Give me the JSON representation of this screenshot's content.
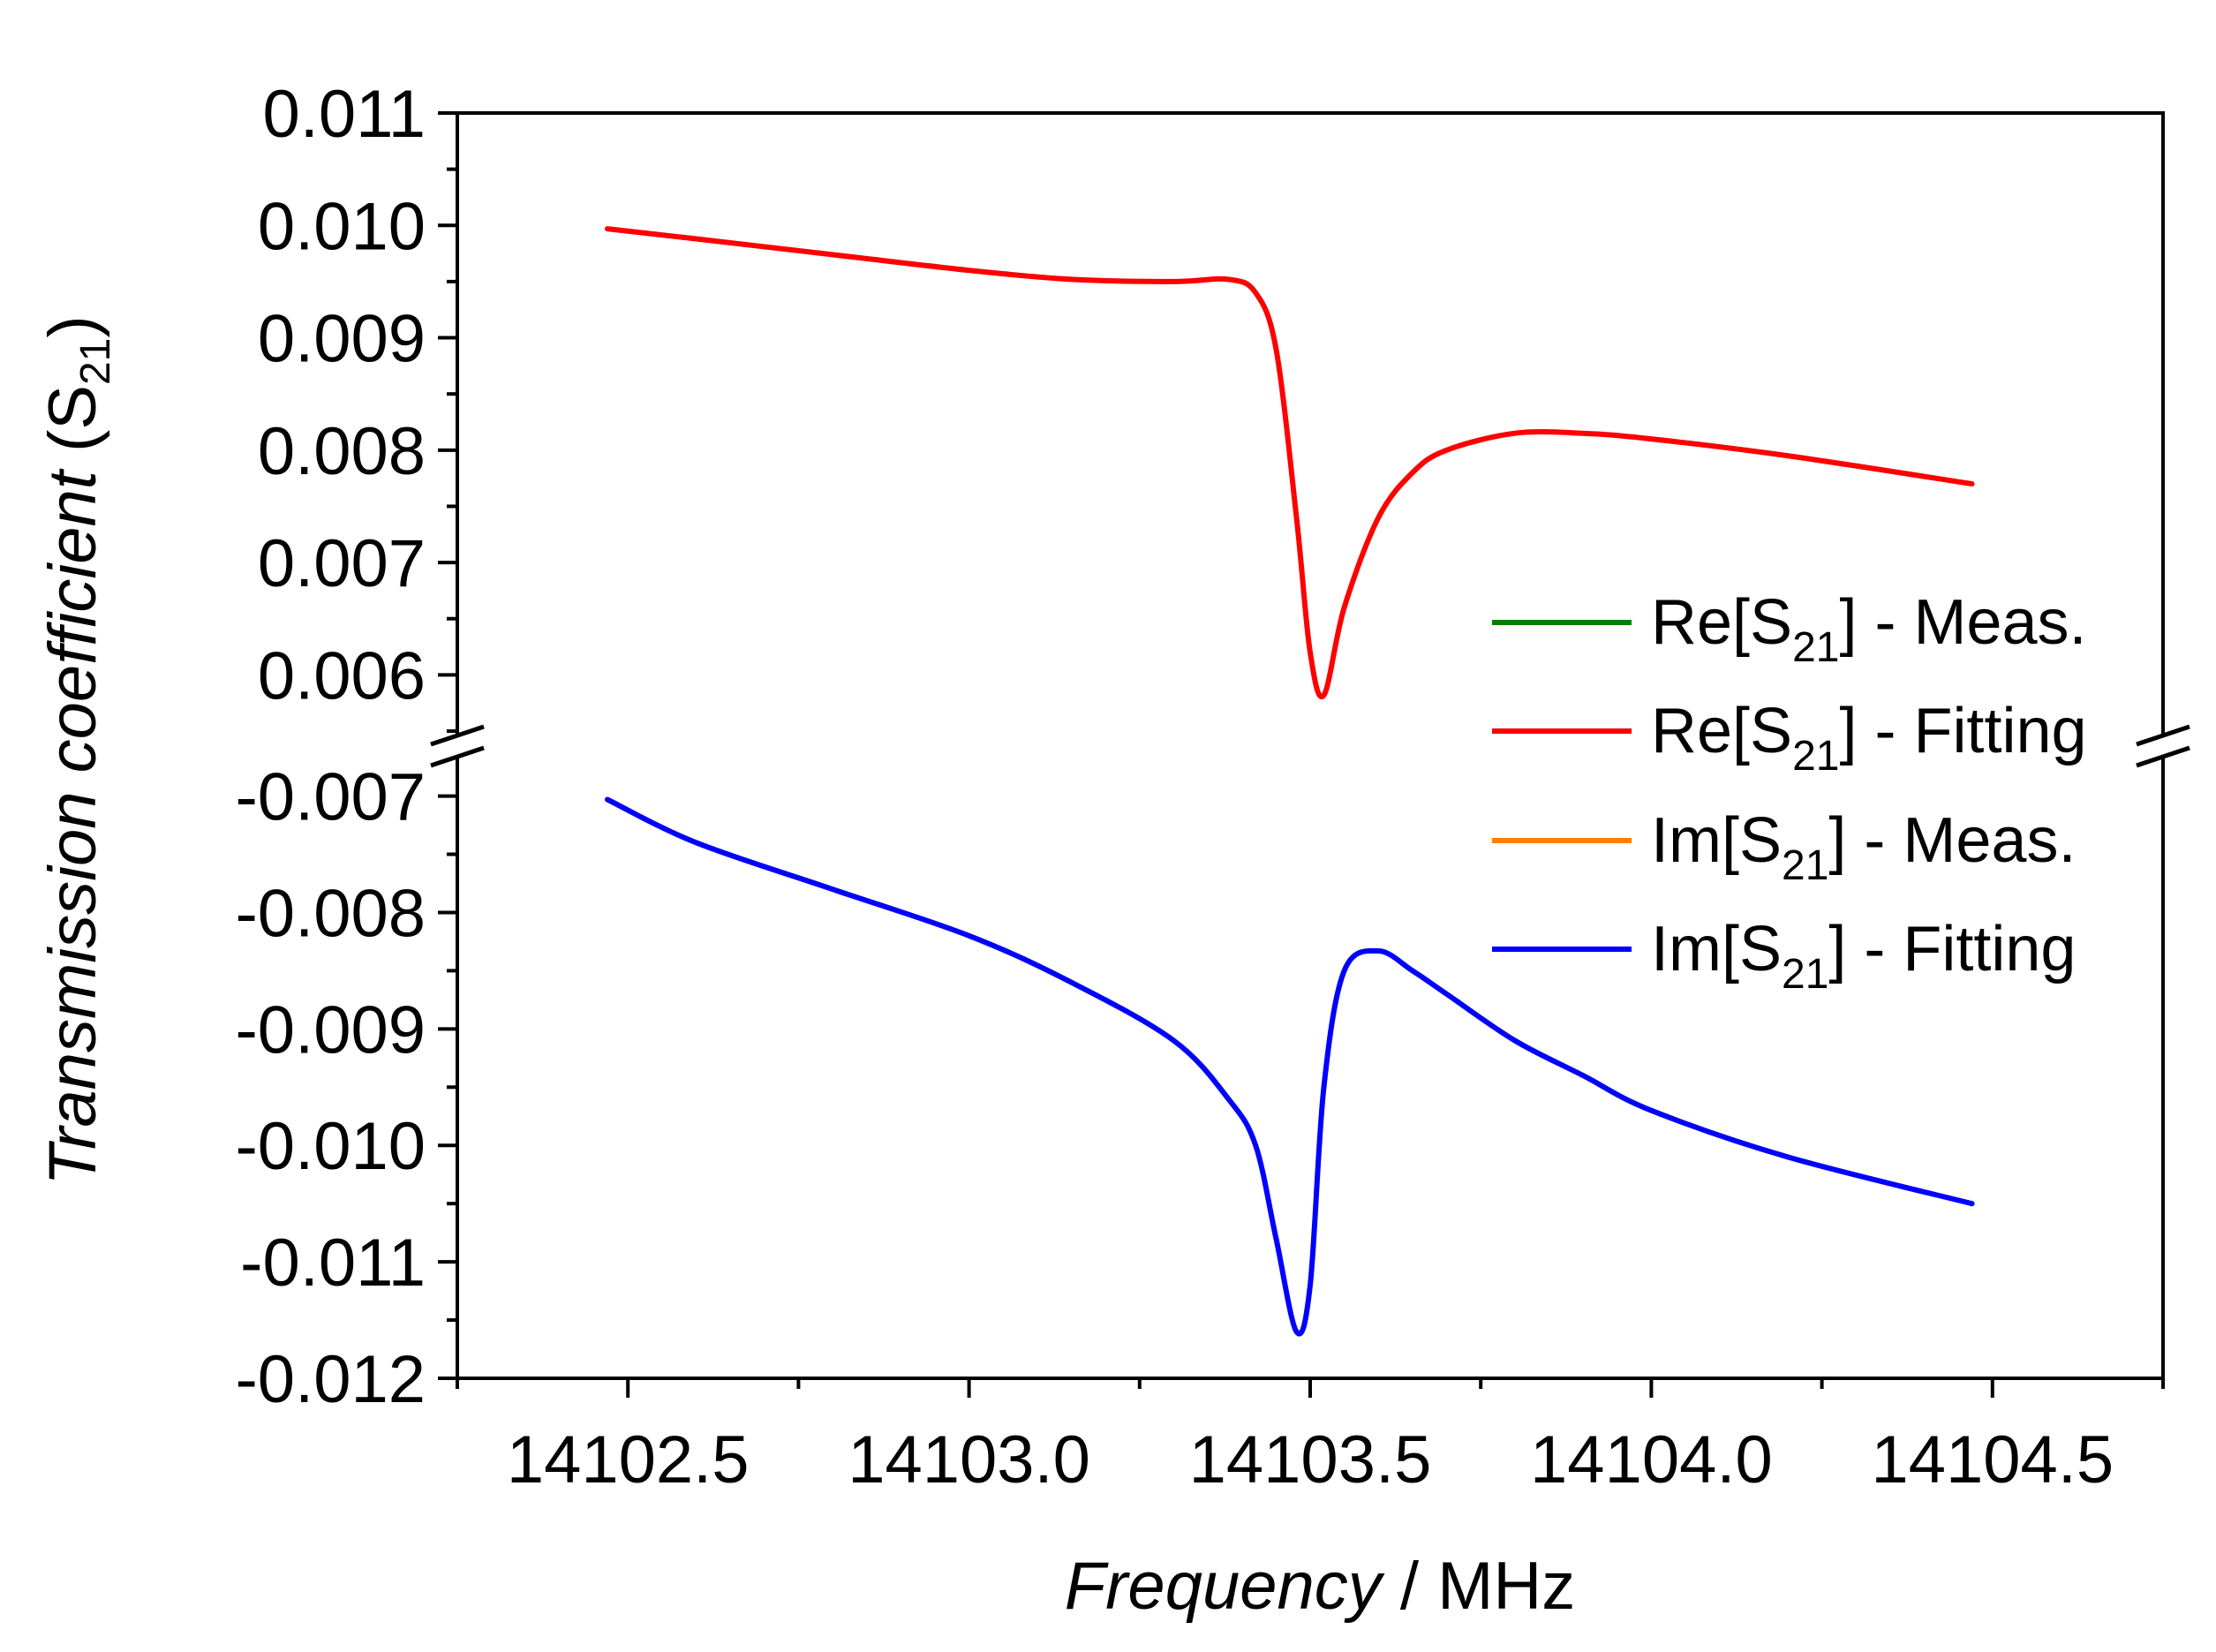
{
  "chart_data": {
    "type": "line",
    "title": "",
    "xlabel": {
      "italic": "Frequency",
      "rest": " / MHz"
    },
    "ylabel": {
      "italic": "Transmission coefficient",
      "sym": "S",
      "sub": "21"
    },
    "xlim": [
      14102.25,
      14104.75
    ],
    "x_ticks": [
      "14102.5",
      "14103.0",
      "14103.5",
      "14104.0",
      "14104.5"
    ],
    "x_tick_values": [
      14102.5,
      14103.0,
      14103.5,
      14104.0,
      14104.5
    ],
    "y_axis_broken": true,
    "upper_panel": {
      "ylim": [
        0.0055,
        0.011
      ],
      "y_ticks": [
        "0.011",
        "0.010",
        "0.009",
        "0.008",
        "0.007",
        "0.006"
      ],
      "y_tick_values": [
        0.011,
        0.01,
        0.009,
        0.008,
        0.007,
        0.006
      ]
    },
    "lower_panel": {
      "ylim": [
        -0.012,
        -0.0067
      ],
      "y_ticks": [
        "-0.007",
        "-0.008",
        "-0.009",
        "-0.010",
        "-0.011",
        "-0.012"
      ],
      "y_tick_values": [
        -0.007,
        -0.008,
        -0.009,
        -0.01,
        -0.011,
        -0.012
      ]
    },
    "x": [
      14102.47,
      14102.6,
      14102.8,
      14103.0,
      14103.15,
      14103.3,
      14103.38,
      14103.42,
      14103.45,
      14103.48,
      14103.5,
      14103.52,
      14103.55,
      14103.6,
      14103.65,
      14103.7,
      14103.8,
      14103.9,
      14104.0,
      14104.2,
      14104.47
    ],
    "series": [
      {
        "name": "Re[S21] - Meas.",
        "legend": {
          "pre": "Re[S",
          "sub": "21",
          "post": "] - Meas."
        },
        "color": "#008000",
        "panel": "upper",
        "values": [
          0.00997,
          0.00988,
          0.00974,
          0.0096,
          0.00952,
          0.0095,
          0.00952,
          0.0094,
          0.0089,
          0.0074,
          0.0062,
          0.00582,
          0.0066,
          0.0074,
          0.0078,
          0.008,
          0.00815,
          0.00815,
          0.0081,
          0.00795,
          0.0077
        ]
      },
      {
        "name": "Re[S21] - Fitting",
        "legend": {
          "pre": "Re[S",
          "sub": "21",
          "post": "] - Fitting"
        },
        "color": "#ff0000",
        "panel": "upper",
        "values": [
          0.00997,
          0.00988,
          0.00974,
          0.0096,
          0.00952,
          0.0095,
          0.00952,
          0.0094,
          0.0089,
          0.0074,
          0.0062,
          0.00582,
          0.0066,
          0.0074,
          0.0078,
          0.008,
          0.00815,
          0.00815,
          0.0081,
          0.00795,
          0.0077
        ]
      },
      {
        "name": "Im[S21] - Meas.",
        "legend": {
          "pre": "Im[S",
          "sub": "21",
          "post": "] - Meas."
        },
        "color": "#ff8000",
        "panel": "lower",
        "values": [
          -0.00703,
          -0.0074,
          -0.0078,
          -0.0082,
          -0.0086,
          -0.0091,
          -0.0096,
          -0.01,
          -0.0108,
          -0.0116,
          -0.0112,
          -0.0095,
          -0.0085,
          -0.00833,
          -0.0085,
          -0.0087,
          -0.0091,
          -0.0094,
          -0.0097,
          -0.0101,
          -0.0105
        ]
      },
      {
        "name": "Im[S21] - Fitting",
        "legend": {
          "pre": "Im[S",
          "sub": "21",
          "post": "] - Fitting"
        },
        "color": "#0000ff",
        "panel": "lower",
        "values": [
          -0.00703,
          -0.0074,
          -0.0078,
          -0.0082,
          -0.0086,
          -0.0091,
          -0.0096,
          -0.01,
          -0.0108,
          -0.0116,
          -0.0112,
          -0.0095,
          -0.0085,
          -0.00833,
          -0.0085,
          -0.0087,
          -0.0091,
          -0.0094,
          -0.0097,
          -0.0101,
          -0.0105
        ]
      }
    ],
    "legend_position": "right"
  }
}
